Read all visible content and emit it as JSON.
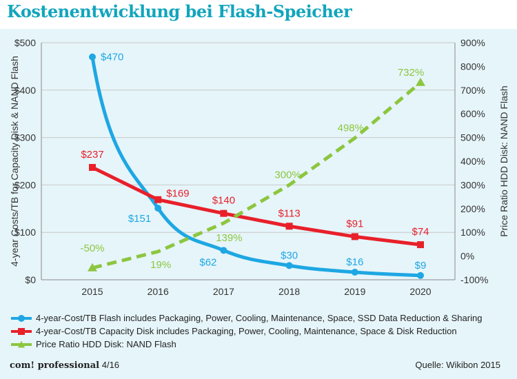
{
  "title": "Kostenentwicklung bei Flash-Speicher",
  "footer": {
    "publication": "com! professional",
    "issue": "4/16",
    "source": "Quelle: Wikibon 2015"
  },
  "chart_data": {
    "type": "line",
    "title": "Kostenentwicklung bei Flash-Speicher",
    "categories": [
      "2015",
      "2016",
      "2017",
      "2018",
      "2019",
      "2020"
    ],
    "ylabel": "4-year Costs/TB for Capacity Disk & NAND Flash",
    "y2label": "Price Ratio HDD Disk: NAND Flash",
    "ylim": [
      0,
      500
    ],
    "y2lim": [
      -100,
      900
    ],
    "yticks": [
      "$0",
      "$100",
      "$200",
      "$300",
      "$400",
      "$500"
    ],
    "y2ticks": [
      "-100%",
      "0%",
      "100%",
      "200%",
      "300%",
      "400%",
      "500%",
      "600%",
      "700%",
      "800%",
      "900%"
    ],
    "grid": true,
    "legend_position": "bottom",
    "series": [
      {
        "name": "4-year-Cost/TB Flash includes Packaging, Power, Cooling, Maintenance, Space, SSD Data Reduction & Sharing",
        "axis": "left",
        "style": "smooth",
        "color": "#1ea7e3",
        "values": [
          470,
          151,
          62,
          30,
          16,
          9
        ],
        "labels": [
          "$470",
          "$151",
          "$62",
          "$30",
          "$16",
          "$9"
        ]
      },
      {
        "name": "4-year-Cost/TB Capacity Disk includes Packaging, Power, Cooling, Maintenance, Space & Disk Reduction",
        "axis": "left",
        "style": "solid",
        "color": "#e8202a",
        "values": [
          237,
          169,
          140,
          113,
          91,
          74
        ],
        "labels": [
          "$237",
          "$169",
          "$140",
          "$113",
          "$91",
          "$74"
        ]
      },
      {
        "name": "Price Ratio HDD Disk: NAND Flash",
        "axis": "right",
        "style": "dashed",
        "color": "#8cc63f",
        "values": [
          -50,
          19,
          139,
          300,
          498,
          732
        ],
        "labels": [
          "-50%",
          "19%",
          "139%",
          "300%",
          "498%",
          "732%"
        ]
      }
    ]
  }
}
